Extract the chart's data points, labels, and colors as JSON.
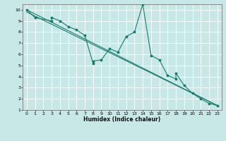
{
  "xlabel": "Humidex (Indice chaleur)",
  "bg_color": "#c8e8e8",
  "grid_color": "#ffffff",
  "line_color": "#1a7a6e",
  "xlim": [
    -0.5,
    23.5
  ],
  "ylim": [
    1,
    10.5
  ],
  "xticks": [
    0,
    1,
    2,
    3,
    4,
    5,
    6,
    7,
    8,
    9,
    10,
    11,
    12,
    13,
    14,
    15,
    16,
    17,
    18,
    19,
    20,
    21,
    22,
    23
  ],
  "yticks": [
    1,
    2,
    3,
    4,
    5,
    6,
    7,
    8,
    9,
    10
  ],
  "series1_x": [
    0,
    1,
    3,
    3,
    4,
    5,
    6,
    7,
    8,
    8,
    9,
    10,
    11,
    12,
    13,
    14,
    15,
    16,
    17,
    18,
    18,
    19,
    20,
    21,
    22,
    23
  ],
  "series1_y": [
    10,
    9.3,
    9.0,
    9.3,
    9.0,
    8.5,
    8.2,
    7.7,
    5.2,
    5.4,
    5.5,
    6.5,
    6.2,
    7.6,
    8.0,
    10.5,
    5.9,
    5.5,
    4.1,
    3.8,
    4.3,
    3.2,
    2.5,
    2.0,
    1.6,
    1.4
  ],
  "series2_x": [
    0,
    23
  ],
  "series2_y": [
    10,
    1.4
  ],
  "series3_x": [
    0,
    23
  ],
  "series3_y": [
    9.8,
    1.4
  ]
}
